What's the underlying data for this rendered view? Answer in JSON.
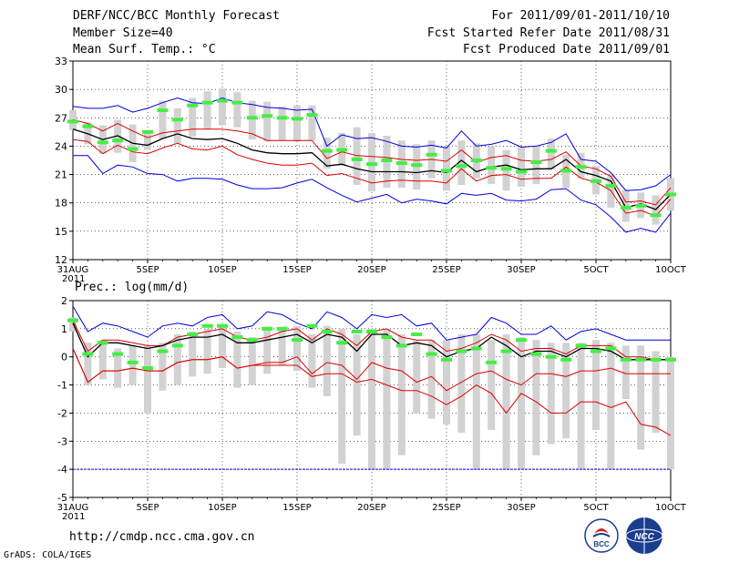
{
  "header": {
    "title": "DERF/NCC/BCC Monthly Forecast",
    "member_size": "Member Size=40",
    "var1_label": "Mean Surf. Temp.: °C",
    "period": "For 2011/09/01-2011/10/10",
    "fcst_started": "Fcst Started Refer Date 2011/08/31",
    "fcst_produced": "Fcst Produced Date 2011/09/01"
  },
  "footer": {
    "url": "http://cmdp.ncc.cma.gov.cn",
    "credit": "GrADS: COLA/IGES",
    "logo_left": "BCC",
    "logo_right": "NCC"
  },
  "colors": {
    "max_line": "#0000dd",
    "pct_line": "#dd0000",
    "mean_line": "#000000",
    "obs_marker": "#44ee44",
    "box": "#d2d2d2",
    "grid": "#000000"
  },
  "chart_data": [
    {
      "type": "line",
      "title": "Mean Surf. Temp.: °C",
      "x_tick_labels": [
        "31AUG",
        "5SEP",
        "10SEP",
        "15SEP",
        "20SEP",
        "25SEP",
        "30SEP",
        "5OCT",
        "10OCT"
      ],
      "x_year_label": "2011",
      "x_range": [
        0,
        40
      ],
      "ylim": [
        12,
        33
      ],
      "y_ticks": [
        12,
        15,
        18,
        21,
        24,
        27,
        30,
        33
      ],
      "grid": true,
      "series": [
        {
          "name": "max",
          "values": [
            28.2,
            28.0,
            28.0,
            28.3,
            27.6,
            28.0,
            28.6,
            29.1,
            28.6,
            28.5,
            29.1,
            28.6,
            28.4,
            28.1,
            28.0,
            27.8,
            27.9,
            24.0,
            25.2,
            24.8,
            24.9,
            24.5,
            24.0,
            23.9,
            24.1,
            23.8,
            25.6,
            24.0,
            24.2,
            24.6,
            23.9,
            24.0,
            24.4,
            25.3,
            22.6,
            22.4,
            21.2,
            19.3,
            19.4,
            19.8,
            21.0
          ]
        },
        {
          "name": "p90",
          "values": [
            26.8,
            26.4,
            25.6,
            26.4,
            25.6,
            24.9,
            25.4,
            25.6,
            25.8,
            25.8,
            25.8,
            25.6,
            25.3,
            24.6,
            24.6,
            24.6,
            24.6,
            22.7,
            23.4,
            23.0,
            22.9,
            22.8,
            22.6,
            22.5,
            22.6,
            22.4,
            23.6,
            22.3,
            22.8,
            23.0,
            22.5,
            22.4,
            22.6,
            23.4,
            21.9,
            21.6,
            20.8,
            18.1,
            18.2,
            17.8,
            19.6
          ]
        },
        {
          "name": "mean",
          "values": [
            25.8,
            25.3,
            24.7,
            25.1,
            24.3,
            24.1,
            24.8,
            25.3,
            24.8,
            24.7,
            24.8,
            24.3,
            23.6,
            23.3,
            23.2,
            23.2,
            23.3,
            21.9,
            22.1,
            21.6,
            21.3,
            21.3,
            21.3,
            21.2,
            21.4,
            21.2,
            22.5,
            21.3,
            21.8,
            22.0,
            21.5,
            21.6,
            21.6,
            22.6,
            21.3,
            20.9,
            20.3,
            17.5,
            17.9,
            17.3,
            18.9
          ]
        },
        {
          "name": "p10",
          "values": [
            24.7,
            24.5,
            23.2,
            24.1,
            23.4,
            23.2,
            23.8,
            24.3,
            23.7,
            23.6,
            24.0,
            23.1,
            22.6,
            22.2,
            22.0,
            22.0,
            22.2,
            20.9,
            21.1,
            20.6,
            20.1,
            20.3,
            20.4,
            20.3,
            20.3,
            20.1,
            21.6,
            20.3,
            20.9,
            21.0,
            20.5,
            20.6,
            20.6,
            21.8,
            20.6,
            20.2,
            19.3,
            16.9,
            17.2,
            16.6,
            18.4
          ]
        },
        {
          "name": "min",
          "values": [
            23.0,
            23.0,
            21.1,
            22.0,
            21.8,
            21.1,
            21.0,
            20.3,
            20.6,
            20.6,
            20.5,
            19.9,
            19.5,
            19.5,
            19.6,
            20.1,
            20.5,
            19.6,
            18.8,
            18.1,
            18.5,
            18.9,
            18.0,
            18.4,
            18.2,
            17.9,
            19.0,
            18.8,
            19.0,
            18.3,
            18.2,
            18.4,
            19.4,
            19.5,
            18.3,
            17.8,
            16.5,
            14.9,
            15.3,
            14.9,
            16.9
          ]
        },
        {
          "name": "observed",
          "values": [
            26.6,
            26.1,
            24.4,
            24.6,
            23.7,
            25.5,
            27.8,
            26.8,
            28.3,
            28.6,
            28.8,
            28.6,
            27.0,
            27.2,
            27.0,
            26.9,
            27.3,
            23.5,
            23.6,
            22.6,
            22.1,
            22.5,
            22.2,
            22.0,
            23.1,
            21.4,
            21.9,
            22.5,
            21.7,
            21.6,
            21.3,
            22.3,
            23.5,
            21.4,
            21.8,
            20.3,
            19.8,
            17.5,
            17.7,
            16.7,
            18.9
          ]
        }
      ],
      "boxes": [
        {
          "low": 25.7,
          "high": 27.8
        },
        {
          "low": 24.2,
          "high": 26.5
        },
        {
          "low": 23.2,
          "high": 26.2
        },
        {
          "low": 23.3,
          "high": 26.8
        },
        {
          "low": 22.3,
          "high": 26.3
        },
        {
          "low": 23.6,
          "high": 25.7
        },
        {
          "low": 24.8,
          "high": 28.8
        },
        {
          "low": 24.3,
          "high": 28.0
        },
        {
          "low": 25.0,
          "high": 29.1
        },
        {
          "low": 25.8,
          "high": 29.8
        },
        {
          "low": 26.2,
          "high": 30.1
        },
        {
          "low": 26.0,
          "high": 29.7
        },
        {
          "low": 24.7,
          "high": 28.8
        },
        {
          "low": 24.5,
          "high": 28.7
        },
        {
          "low": 24.6,
          "high": 28.2
        },
        {
          "low": 24.5,
          "high": 28.3
        },
        {
          "low": 24.6,
          "high": 28.3
        },
        {
          "low": 21.6,
          "high": 24.9
        },
        {
          "low": 21.9,
          "high": 25.4
        },
        {
          "low": 19.9,
          "high": 26.0
        },
        {
          "low": 19.2,
          "high": 25.4
        },
        {
          "low": 19.6,
          "high": 25.1
        },
        {
          "low": 19.6,
          "high": 24.6
        },
        {
          "low": 19.4,
          "high": 24.2
        },
        {
          "low": 20.6,
          "high": 24.6
        },
        {
          "low": 19.3,
          "high": 24.0
        },
        {
          "low": 19.9,
          "high": 24.6
        },
        {
          "low": 20.6,
          "high": 24.3
        },
        {
          "low": 20.0,
          "high": 24.0
        },
        {
          "low": 19.3,
          "high": 23.6
        },
        {
          "low": 19.7,
          "high": 23.9
        },
        {
          "low": 20.0,
          "high": 24.0
        },
        {
          "low": 21.5,
          "high": 24.8
        },
        {
          "low": 19.6,
          "high": 23.1
        },
        {
          "low": 20.6,
          "high": 23.3
        },
        {
          "low": 18.9,
          "high": 21.9
        },
        {
          "low": 17.5,
          "high": 21.0
        },
        {
          "low": 16.0,
          "high": 19.4
        },
        {
          "low": 16.4,
          "high": 19.1
        },
        {
          "low": 15.7,
          "high": 18.8
        },
        {
          "low": 17.2,
          "high": 20.6
        }
      ]
    },
    {
      "type": "line",
      "title": "Prec.: log(mm/d)",
      "x_tick_labels": [
        "31AUG",
        "5SEP",
        "10SEP",
        "15SEP",
        "20SEP",
        "25SEP",
        "30SEP",
        "5OCT",
        "10OCT"
      ],
      "x_year_label": "2011",
      "x_range": [
        0,
        40
      ],
      "ylim": [
        -5,
        2
      ],
      "y_ticks": [
        -5,
        -4,
        -3,
        -2,
        -1,
        0,
        1,
        2
      ],
      "grid": true,
      "series": [
        {
          "name": "max",
          "values": [
            1.8,
            0.9,
            1.2,
            1.1,
            0.9,
            0.7,
            1.1,
            1.2,
            1.1,
            1.4,
            1.5,
            1.0,
            1.1,
            1.6,
            1.5,
            1.2,
            1.0,
            1.6,
            1.4,
            1.0,
            1.5,
            1.4,
            1.5,
            1.1,
            1.2,
            0.6,
            0.7,
            0.8,
            1.4,
            1.2,
            0.8,
            0.8,
            1.1,
            0.6,
            0.9,
            1.0,
            0.8,
            0.6,
            0.6,
            0.6,
            0.6
          ]
        },
        {
          "name": "p90",
          "values": [
            1.3,
            0.2,
            0.6,
            0.6,
            0.5,
            0.4,
            0.4,
            0.7,
            0.8,
            0.9,
            1.0,
            0.7,
            0.6,
            0.7,
            0.9,
            1.0,
            0.6,
            1.0,
            0.8,
            0.4,
            0.9,
            1.0,
            0.7,
            0.6,
            0.6,
            0.2,
            0.3,
            0.5,
            0.8,
            0.6,
            0.2,
            0.3,
            0.3,
            0.1,
            0.4,
            0.4,
            0.4,
            0.0,
            0.0,
            -0.1,
            -0.1
          ]
        },
        {
          "name": "mean",
          "values": [
            1.2,
            0.0,
            0.5,
            0.5,
            0.4,
            0.3,
            0.4,
            0.6,
            0.7,
            0.7,
            0.8,
            0.5,
            0.5,
            0.6,
            0.7,
            0.8,
            0.5,
            0.8,
            0.7,
            0.2,
            0.8,
            0.8,
            0.4,
            0.5,
            0.4,
            0.0,
            0.2,
            0.3,
            0.7,
            0.4,
            0.0,
            0.2,
            0.2,
            0.0,
            0.3,
            0.3,
            0.2,
            -0.1,
            -0.1,
            -0.1,
            -0.1
          ]
        },
        {
          "name": "p10",
          "values": [
            0.3,
            -0.9,
            -0.5,
            -0.5,
            -0.4,
            -0.5,
            -0.5,
            -0.2,
            -0.1,
            -0.1,
            0.0,
            -0.4,
            -0.3,
            -0.2,
            -0.2,
            0.0,
            -0.6,
            -0.2,
            -0.3,
            -0.8,
            -0.2,
            -0.4,
            -0.5,
            -0.9,
            -0.7,
            -1.2,
            -0.9,
            -0.6,
            -0.5,
            -0.8,
            -1.0,
            -0.6,
            -0.6,
            -0.7,
            -0.5,
            -0.5,
            -0.4,
            -0.6,
            -0.6,
            -0.6,
            -0.6
          ]
        },
        {
          "name": "p01",
          "values": [
            0.3,
            -0.9,
            -0.5,
            -0.5,
            -0.4,
            -0.5,
            -0.5,
            -0.2,
            -0.1,
            -0.1,
            0.0,
            -0.4,
            -0.3,
            -0.3,
            -0.3,
            -0.3,
            -0.7,
            -0.6,
            -0.6,
            -0.9,
            -0.8,
            -1.0,
            -1.2,
            -1.2,
            -1.4,
            -1.7,
            -1.4,
            -1.0,
            -1.3,
            -2.0,
            -1.3,
            -1.6,
            -2.0,
            -2.0,
            -1.6,
            -1.6,
            -1.8,
            -1.6,
            -2.4,
            -2.5,
            -2.8
          ]
        },
        {
          "name": "min",
          "values": [
            -4,
            -4,
            -4,
            -4,
            -4,
            -4,
            -4,
            -4,
            -4,
            -4,
            -4,
            -4,
            -4,
            -4,
            -4,
            -4,
            -4,
            -4,
            -4,
            -4,
            -4,
            -4,
            -4,
            -4,
            -4,
            -4,
            -4,
            -4,
            -4,
            -4,
            -4,
            -4,
            -4,
            -4,
            -4,
            -4,
            -4,
            -4,
            -4,
            -4,
            -4
          ]
        },
        {
          "name": "observed",
          "values": [
            1.3,
            0.1,
            0.5,
            0.1,
            -0.2,
            -0.4,
            0.2,
            0.4,
            0.8,
            1.1,
            1.1,
            0.7,
            0.6,
            1.0,
            1.0,
            0.6,
            1.1,
            0.9,
            0.5,
            0.9,
            0.9,
            0.7,
            0.4,
            0.8,
            0.1,
            -0.1,
            0.2,
            0.3,
            -0.2,
            0.2,
            0.6,
            0.1,
            0.0,
            -0.1,
            0.4,
            0.2,
            0.3,
            -0.1,
            -0.1,
            -0.1,
            -0.1
          ]
        }
      ],
      "boxes": [
        {
          "low": 0.9,
          "high": 1.4
        },
        {
          "low": -1.0,
          "high": 0.5
        },
        {
          "low": -0.8,
          "high": 0.6
        },
        {
          "low": -1.1,
          "high": 0.3
        },
        {
          "low": -1.0,
          "high": 0.4
        },
        {
          "low": -2.0,
          "high": 0.4
        },
        {
          "low": -1.2,
          "high": 0.5
        },
        {
          "low": -1.0,
          "high": 0.8
        },
        {
          "low": -0.7,
          "high": 0.9
        },
        {
          "low": -0.6,
          "high": 1.0
        },
        {
          "low": -0.4,
          "high": 1.1
        },
        {
          "low": -1.1,
          "high": 0.9
        },
        {
          "low": -1.0,
          "high": 0.7
        },
        {
          "low": -0.6,
          "high": 1.0
        },
        {
          "low": -0.3,
          "high": 1.0
        },
        {
          "low": -0.5,
          "high": 1.1
        },
        {
          "low": -1.1,
          "high": 0.8
        },
        {
          "low": -1.4,
          "high": 1.1
        },
        {
          "low": -3.8,
          "high": 1.0
        },
        {
          "low": -2.8,
          "high": 0.8
        },
        {
          "low": -4.0,
          "high": 1.0
        },
        {
          "low": -4.0,
          "high": 1.0
        },
        {
          "low": -3.5,
          "high": 0.8
        },
        {
          "low": -2.0,
          "high": 0.6
        },
        {
          "low": -2.2,
          "high": 0.6
        },
        {
          "low": -2.4,
          "high": 0.6
        },
        {
          "low": -2.7,
          "high": 0.8
        },
        {
          "low": -4.0,
          "high": 0.8
        },
        {
          "low": -2.6,
          "high": 0.6
        },
        {
          "low": -4.0,
          "high": 0.8
        },
        {
          "low": -4.0,
          "high": 0.7
        },
        {
          "low": -3.5,
          "high": 0.6
        },
        {
          "low": -3.1,
          "high": 0.5
        },
        {
          "low": -2.9,
          "high": 0.5
        },
        {
          "low": -4.0,
          "high": 0.5
        },
        {
          "low": -2.6,
          "high": 0.6
        },
        {
          "low": -4.0,
          "high": 0.5
        },
        {
          "low": -1.5,
          "high": 0.4
        },
        {
          "low": -3.3,
          "high": 0.4
        },
        {
          "low": -2.7,
          "high": 0.2
        },
        {
          "low": -4.0,
          "high": 0.0
        }
      ]
    }
  ]
}
